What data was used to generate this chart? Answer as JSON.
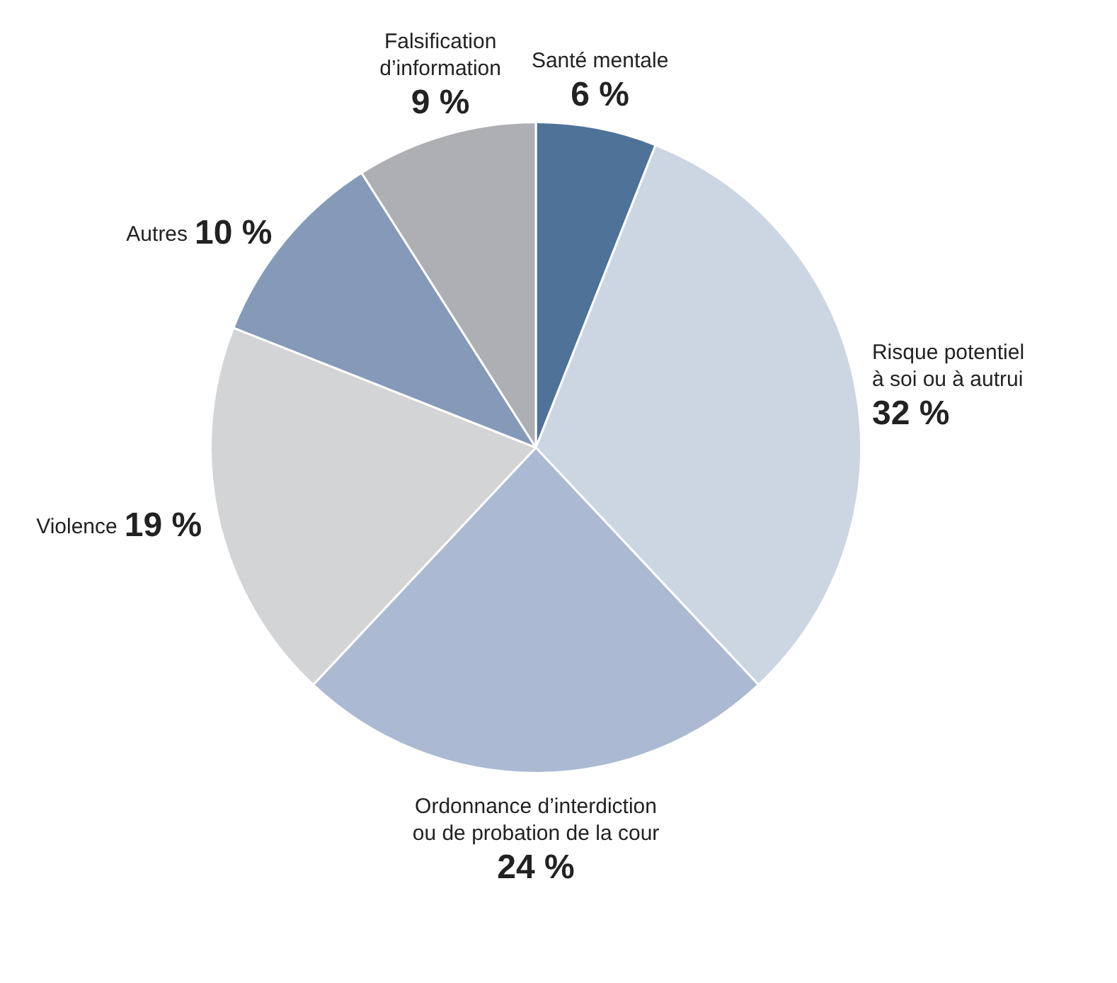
{
  "chart_data": {
    "type": "pie",
    "categories": [
      "Santé mentale",
      "Risque potentiel à soi ou à autrui",
      "Ordonnance d’interdiction ou de probation de la cour",
      "Violence",
      "Autres",
      "Falsification d’information"
    ],
    "values": [
      6,
      32,
      24,
      19,
      10,
      9
    ],
    "value_labels": [
      "6 %",
      "32 %",
      "24 %",
      "19 %",
      "10 %",
      "9 %"
    ],
    "colors": [
      "#4f7298",
      "#ccd6e3",
      "#abbad2",
      "#d3d4d6",
      "#8599b8",
      "#aeafb2"
    ],
    "legend": false
  }
}
